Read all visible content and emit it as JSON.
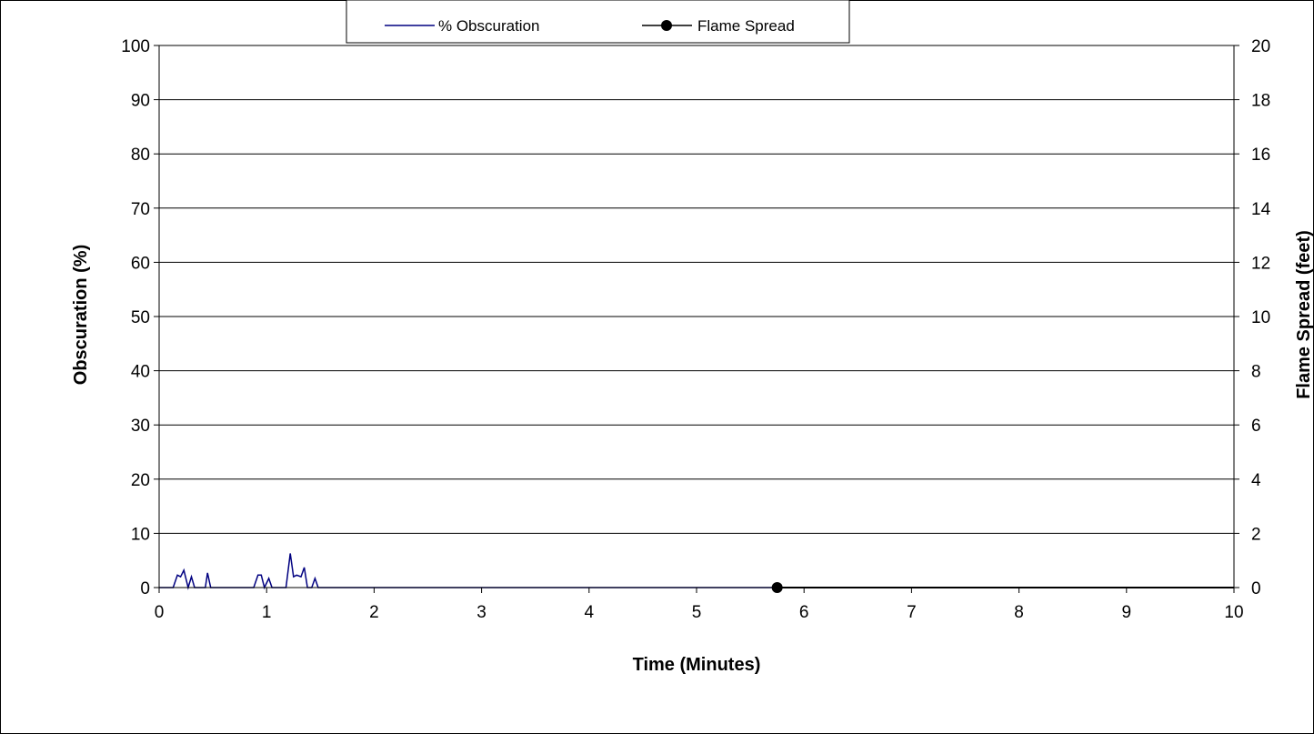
{
  "chart_data": {
    "type": "line",
    "xlabel": "Time (Minutes)",
    "ylabel": "Obscuration (%)",
    "y2label": "Flame Spread (feet)",
    "xlim": [
      0,
      10
    ],
    "ylim": [
      0,
      100
    ],
    "y2lim": [
      0,
      20
    ],
    "x_ticks": [
      "0",
      "1",
      "2",
      "3",
      "4",
      "5",
      "6",
      "7",
      "8",
      "9",
      "10"
    ],
    "y_ticks": [
      "0",
      "10",
      "20",
      "30",
      "40",
      "50",
      "60",
      "70",
      "80",
      "90",
      "100"
    ],
    "y2_ticks": [
      "0",
      "2",
      "4",
      "6",
      "8",
      "10",
      "12",
      "14",
      "16",
      "18",
      "20"
    ],
    "grid": true,
    "legend_position": "top",
    "series": [
      {
        "name": "% Obscuration",
        "axis": "left",
        "color": "#000080",
        "marker": "none",
        "x": [
          0.0,
          0.13,
          0.17,
          0.2,
          0.23,
          0.27,
          0.3,
          0.33,
          0.43,
          0.45,
          0.48,
          0.53,
          0.88,
          0.92,
          0.95,
          0.98,
          1.02,
          1.05,
          1.08,
          1.18,
          1.22,
          1.25,
          1.28,
          1.32,
          1.35,
          1.38,
          1.42,
          1.45,
          1.48,
          1.55,
          5.75,
          10.0
        ],
        "y": [
          0,
          0,
          2.3,
          2,
          3.2,
          0,
          2.0,
          0,
          0,
          2.7,
          0,
          0,
          0,
          2.3,
          2.3,
          0,
          1.7,
          0,
          0,
          0,
          6.3,
          2.0,
          2.3,
          2.0,
          3.7,
          0,
          0,
          1.7,
          0,
          0,
          0,
          0
        ]
      },
      {
        "name": "Flame Spread",
        "axis": "right",
        "color": "#000000",
        "marker": "circle",
        "x": [
          5.75,
          10.0
        ],
        "y": [
          0,
          0
        ]
      }
    ]
  }
}
